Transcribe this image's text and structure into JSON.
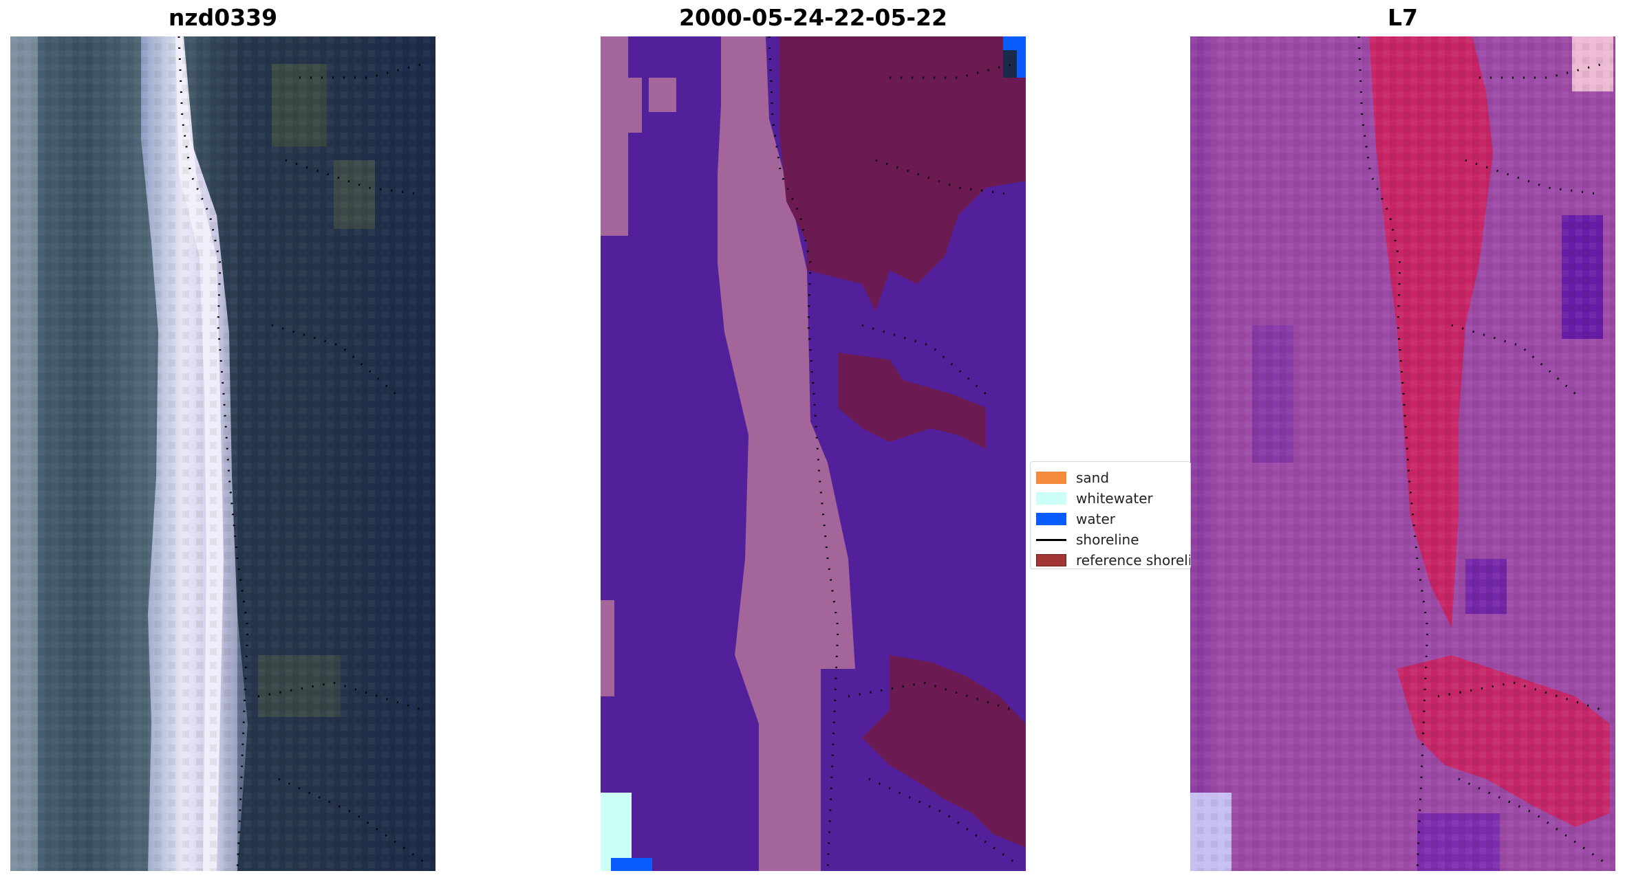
{
  "titles": {
    "left": "nzd0339",
    "middle": "2000-05-24-22-05-22",
    "right": "L7"
  },
  "legend": {
    "items": [
      {
        "label": "sand",
        "kind": "patch",
        "color": "#f58a3c"
      },
      {
        "label": "whitewater",
        "kind": "patch",
        "color": "#ccfff7"
      },
      {
        "label": "water",
        "kind": "patch",
        "color": "#0a5cff"
      },
      {
        "label": "shoreline",
        "kind": "line",
        "color": "#000000"
      },
      {
        "label": "reference shoreline",
        "kind": "patch",
        "color": "#a33535"
      }
    ]
  },
  "colors": {
    "classification_background": "#51209a",
    "classification_sand_band": "#a4659b",
    "classification_land": "#6b1a52",
    "rgb_water": "#1f2e4e",
    "rgb_vegetation": "#3b4a4e",
    "rgb_beach": "#e8e6f5",
    "index_background": "#9c4aa6",
    "index_high": "#d01e5a",
    "index_low": "#5a11a8"
  }
}
